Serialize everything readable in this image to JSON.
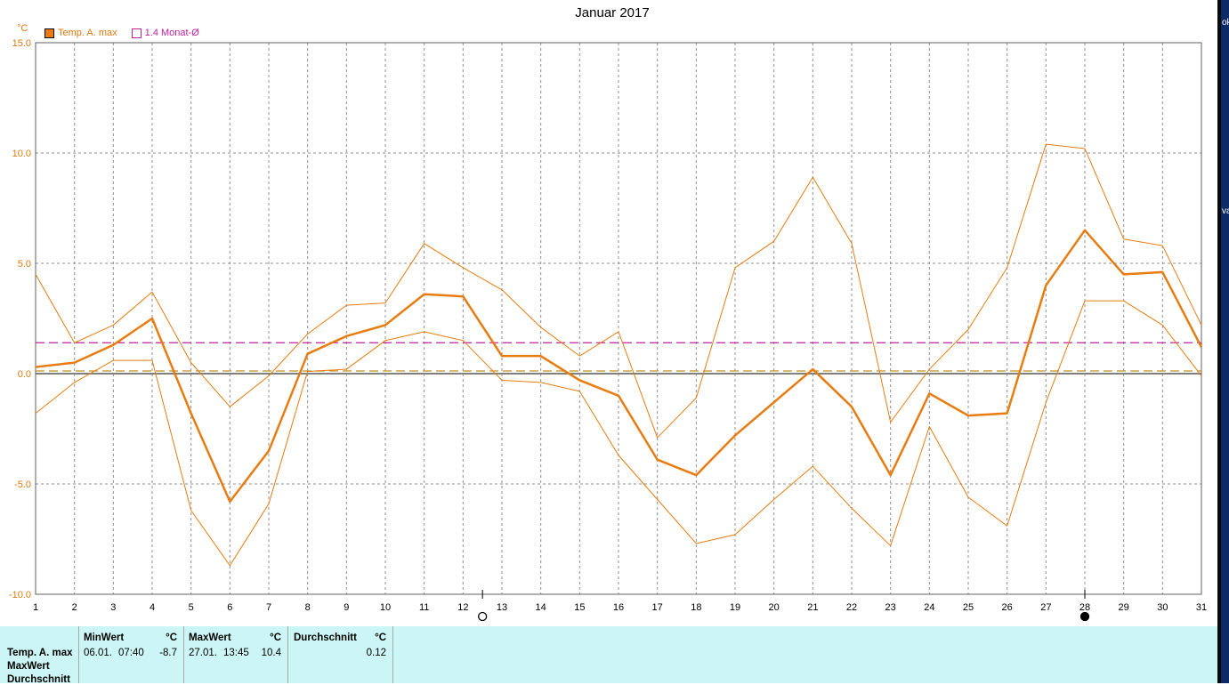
{
  "chart_data": {
    "type": "line",
    "title": "Januar 2017",
    "ylabel": "°C",
    "ylim": [
      -10,
      15
    ],
    "yticks": [
      "15.0",
      "10.0",
      "5.0",
      "0.0",
      "-5.0",
      "-10.0"
    ],
    "ytick_values": [
      15,
      10,
      5,
      0,
      -5,
      -10
    ],
    "xlim": [
      1,
      31
    ],
    "categories": [
      "1",
      "2",
      "3",
      "4",
      "5",
      "6",
      "7",
      "8",
      "9",
      "10",
      "11",
      "12",
      "13",
      "14",
      "15",
      "16",
      "17",
      "18",
      "19",
      "20",
      "21",
      "22",
      "23",
      "24",
      "25",
      "26",
      "27",
      "28",
      "29",
      "30",
      "31"
    ],
    "grid": true,
    "legend_position": "top-left",
    "legend": [
      {
        "label": "Temp. A. max",
        "color": "#e87c10",
        "style": "filled"
      },
      {
        "label": "1.4 Monat-Ø",
        "color": "#c020a0",
        "style": "outline"
      }
    ],
    "series": [
      {
        "name": "Temp. A. max",
        "color": "#e87c10",
        "width": 2.5,
        "values": [
          0.3,
          0.5,
          1.3,
          2.5,
          -1.8,
          -5.8,
          -3.5,
          0.9,
          1.7,
          2.2,
          3.6,
          3.5,
          0.8,
          0.8,
          -0.3,
          -1.0,
          -3.9,
          -4.6,
          -2.8,
          -1.3,
          0.2,
          -1.5,
          -4.6,
          -0.9,
          -1.9,
          -1.8,
          4.0,
          6.5,
          4.5,
          4.6,
          1.2
        ]
      },
      {
        "color": "#e87c10",
        "width": 1,
        "values": [
          4.5,
          1.4,
          2.2,
          3.7,
          0.5,
          -1.5,
          -0.1,
          1.8,
          3.1,
          3.2,
          5.9,
          4.8,
          3.8,
          2.1,
          0.8,
          1.9,
          -2.9,
          -1.1,
          4.8,
          6.0,
          8.9,
          5.9,
          -2.2,
          0.2,
          2.0,
          4.8,
          10.4,
          10.2,
          6.1,
          5.8,
          2.2
        ]
      },
      {
        "color": "#e87c10",
        "width": 1,
        "values": [
          -1.8,
          -0.4,
          0.6,
          0.6,
          -6.2,
          -8.7,
          -5.9,
          0.1,
          0.2,
          1.5,
          1.9,
          1.5,
          -0.3,
          -0.4,
          -0.8,
          -3.7,
          -5.7,
          -7.7,
          -7.3,
          -5.7,
          -4.2,
          -6.1,
          -7.8,
          -2.4,
          -5.6,
          -6.9,
          -1.3,
          3.3,
          3.3,
          2.2,
          -0.1
        ]
      }
    ],
    "reference_lines": [
      {
        "value": 1.4,
        "color": "#c020a0",
        "style": "dashed"
      },
      {
        "value": 0.12,
        "color": "#c09020",
        "style": "dashed"
      }
    ],
    "annotations": [
      {
        "type": "circle-open",
        "x": 12.5
      },
      {
        "type": "circle-filled",
        "x": 28
      }
    ]
  },
  "stats": {
    "row_labels": [
      "Temp. A. max",
      "MaxWert",
      "Durchschnitt"
    ],
    "min": {
      "header": "MinWert",
      "unit": "°C",
      "date": "06.01.",
      "time": "07:40",
      "value": "-8.7"
    },
    "max": {
      "header": "MaxWert",
      "unit": "°C",
      "date": "27.01.",
      "time": "13:45",
      "value": "10.4"
    },
    "avg": {
      "header": "Durchschnitt",
      "unit": "°C",
      "value": "0.12"
    }
  },
  "side_text": {
    "top": "ok",
    "mid": "va"
  }
}
